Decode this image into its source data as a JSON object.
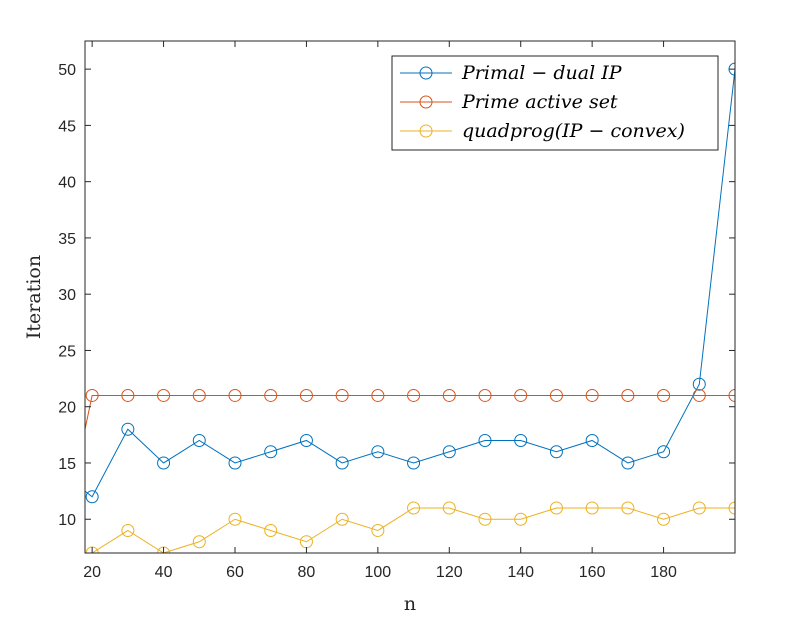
{
  "chart_data": {
    "type": "line",
    "xlabel": "n",
    "ylabel": "Iteration",
    "xlim": [
      18,
      200
    ],
    "ylim": [
      7,
      52.5
    ],
    "xticks": [
      20,
      40,
      60,
      80,
      100,
      120,
      140,
      160,
      180
    ],
    "yticks": [
      10,
      15,
      20,
      25,
      30,
      35,
      40,
      45,
      50
    ],
    "grid": false,
    "legend_position": "top-right",
    "marker": "circle",
    "series": [
      {
        "name": "Primal − dual IP",
        "color": "#0072BD",
        "x": [
          18,
          20,
          30,
          40,
          50,
          60,
          70,
          80,
          90,
          100,
          110,
          120,
          130,
          140,
          150,
          160,
          170,
          180,
          190,
          200
        ],
        "y": [
          12.5,
          12,
          18,
          15,
          17,
          15,
          16,
          17,
          15,
          16,
          15,
          16,
          17,
          17,
          16,
          17,
          15,
          16,
          22,
          50
        ]
      },
      {
        "name": "Prime active set",
        "color": "#D95319",
        "x": [
          18,
          20,
          30,
          40,
          50,
          60,
          70,
          80,
          90,
          100,
          110,
          120,
          130,
          140,
          150,
          160,
          170,
          180,
          190,
          200
        ],
        "y": [
          18,
          21,
          21,
          21,
          21,
          21,
          21,
          21,
          21,
          21,
          21,
          21,
          21,
          21,
          21,
          21,
          21,
          21,
          21,
          21
        ]
      },
      {
        "name": "quadprog(IP − convex)",
        "color": "#EDB120",
        "x": [
          18,
          20,
          30,
          40,
          50,
          60,
          70,
          80,
          90,
          100,
          110,
          120,
          130,
          140,
          150,
          160,
          170,
          180,
          190,
          200
        ],
        "y": [
          7,
          7,
          9,
          7,
          8,
          10,
          9,
          8,
          10,
          9,
          11,
          11,
          10,
          10,
          11,
          11,
          11,
          10,
          11,
          11
        ]
      }
    ]
  }
}
